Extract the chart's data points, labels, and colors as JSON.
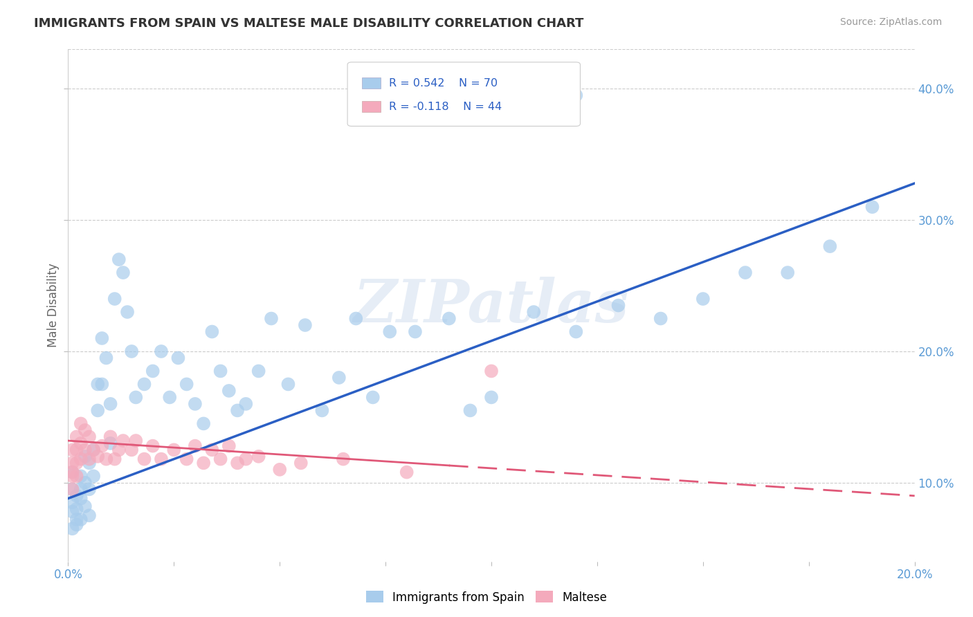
{
  "title": "IMMIGRANTS FROM SPAIN VS MALTESE MALE DISABILITY CORRELATION CHART",
  "source": "Source: ZipAtlas.com",
  "ylabel": "Male Disability",
  "xlim": [
    0.0,
    0.2
  ],
  "ylim": [
    0.04,
    0.43
  ],
  "ytick_labels": [
    "10.0%",
    "20.0%",
    "30.0%",
    "40.0%"
  ],
  "yticks": [
    0.1,
    0.2,
    0.3,
    0.4
  ],
  "blue_R": 0.542,
  "blue_N": 70,
  "pink_R": -0.118,
  "pink_N": 44,
  "blue_color": "#A8CCEC",
  "pink_color": "#F4AABC",
  "blue_line_color": "#2B5FC4",
  "pink_line_color": "#E05878",
  "legend_label_blue": "Immigrants from Spain",
  "legend_label_pink": "Maltese",
  "watermark": "ZIPatlas",
  "blue_line_x0": 0.0,
  "blue_line_y0": 0.088,
  "blue_line_x1": 0.2,
  "blue_line_y1": 0.328,
  "pink_line_x0": 0.0,
  "pink_line_y0": 0.132,
  "pink_line_x1": 0.2,
  "pink_line_y1": 0.09,
  "blue_scatter_x": [
    0.001,
    0.001,
    0.001,
    0.001,
    0.001,
    0.002,
    0.002,
    0.002,
    0.002,
    0.003,
    0.003,
    0.003,
    0.003,
    0.004,
    0.004,
    0.004,
    0.005,
    0.005,
    0.005,
    0.006,
    0.006,
    0.007,
    0.007,
    0.008,
    0.008,
    0.009,
    0.01,
    0.01,
    0.011,
    0.012,
    0.013,
    0.014,
    0.015,
    0.016,
    0.018,
    0.02,
    0.022,
    0.024,
    0.026,
    0.028,
    0.03,
    0.032,
    0.034,
    0.036,
    0.038,
    0.04,
    0.042,
    0.045,
    0.048,
    0.052,
    0.056,
    0.06,
    0.064,
    0.068,
    0.072,
    0.076,
    0.082,
    0.09,
    0.095,
    0.1,
    0.11,
    0.12,
    0.13,
    0.14,
    0.15,
    0.16,
    0.17,
    0.18,
    0.19,
    0.12
  ],
  "blue_scatter_y": [
    0.108,
    0.095,
    0.085,
    0.078,
    0.065,
    0.09,
    0.08,
    0.072,
    0.068,
    0.105,
    0.095,
    0.088,
    0.072,
    0.12,
    0.1,
    0.082,
    0.115,
    0.095,
    0.075,
    0.125,
    0.105,
    0.175,
    0.155,
    0.21,
    0.175,
    0.195,
    0.16,
    0.13,
    0.24,
    0.27,
    0.26,
    0.23,
    0.2,
    0.165,
    0.175,
    0.185,
    0.2,
    0.165,
    0.195,
    0.175,
    0.16,
    0.145,
    0.215,
    0.185,
    0.17,
    0.155,
    0.16,
    0.185,
    0.225,
    0.175,
    0.22,
    0.155,
    0.18,
    0.225,
    0.165,
    0.215,
    0.215,
    0.225,
    0.155,
    0.165,
    0.23,
    0.215,
    0.235,
    0.225,
    0.24,
    0.26,
    0.26,
    0.28,
    0.31,
    0.395
  ],
  "pink_scatter_x": [
    0.001,
    0.001,
    0.001,
    0.001,
    0.001,
    0.002,
    0.002,
    0.002,
    0.002,
    0.003,
    0.003,
    0.003,
    0.004,
    0.004,
    0.005,
    0.005,
    0.006,
    0.007,
    0.008,
    0.009,
    0.01,
    0.011,
    0.012,
    0.013,
    0.015,
    0.016,
    0.018,
    0.02,
    0.022,
    0.025,
    0.028,
    0.03,
    0.032,
    0.034,
    0.036,
    0.038,
    0.04,
    0.042,
    0.045,
    0.05,
    0.055,
    0.065,
    0.08,
    0.1
  ],
  "pink_scatter_y": [
    0.125,
    0.115,
    0.108,
    0.105,
    0.095,
    0.135,
    0.125,
    0.115,
    0.105,
    0.145,
    0.13,
    0.118,
    0.14,
    0.125,
    0.135,
    0.118,
    0.125,
    0.12,
    0.128,
    0.118,
    0.135,
    0.118,
    0.125,
    0.132,
    0.125,
    0.132,
    0.118,
    0.128,
    0.118,
    0.125,
    0.118,
    0.128,
    0.115,
    0.125,
    0.118,
    0.128,
    0.115,
    0.118,
    0.12,
    0.11,
    0.115,
    0.118,
    0.108,
    0.185
  ]
}
